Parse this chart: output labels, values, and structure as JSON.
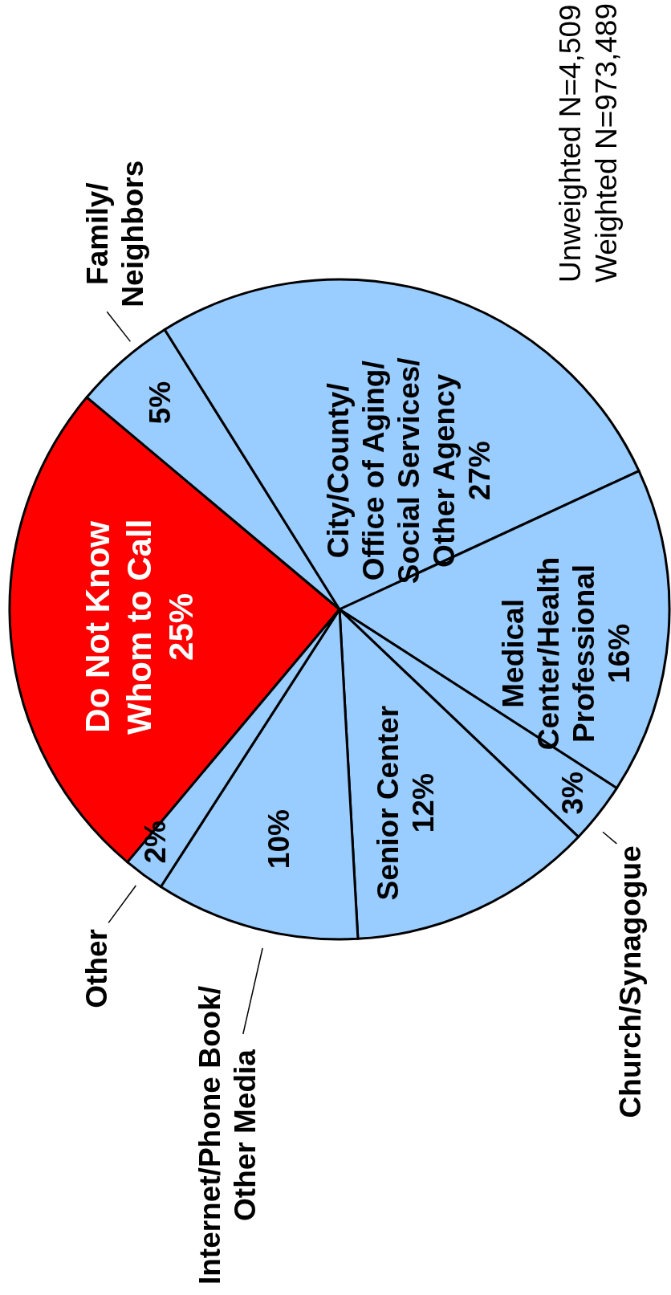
{
  "chart_data": {
    "type": "pie",
    "categories": [
      "Do Not Know\nWhom to Call",
      "Family/\nNeighbors",
      "City/County/\nOffice of Aging/\nSocial Services/\nOther Agency",
      "Medical\nCenter/Health\nProfessional",
      "Church/Synagogue",
      "Senior Center",
      "Internet/Phone Book/\nOther Media",
      "Other"
    ],
    "values": [
      25,
      5,
      27,
      16,
      3,
      12,
      10,
      2
    ],
    "value_labels": [
      "25%",
      "5%",
      "27%",
      "16%",
      "3%",
      "12%",
      "10%",
      "2%"
    ],
    "colors": [
      "#ff0000",
      "#99ccff",
      "#99ccff",
      "#99ccff",
      "#99ccff",
      "#99ccff",
      "#99ccff",
      "#99ccff"
    ],
    "annotations": [
      "Unweighted N=4,509",
      "Weighted N=973,489"
    ]
  }
}
